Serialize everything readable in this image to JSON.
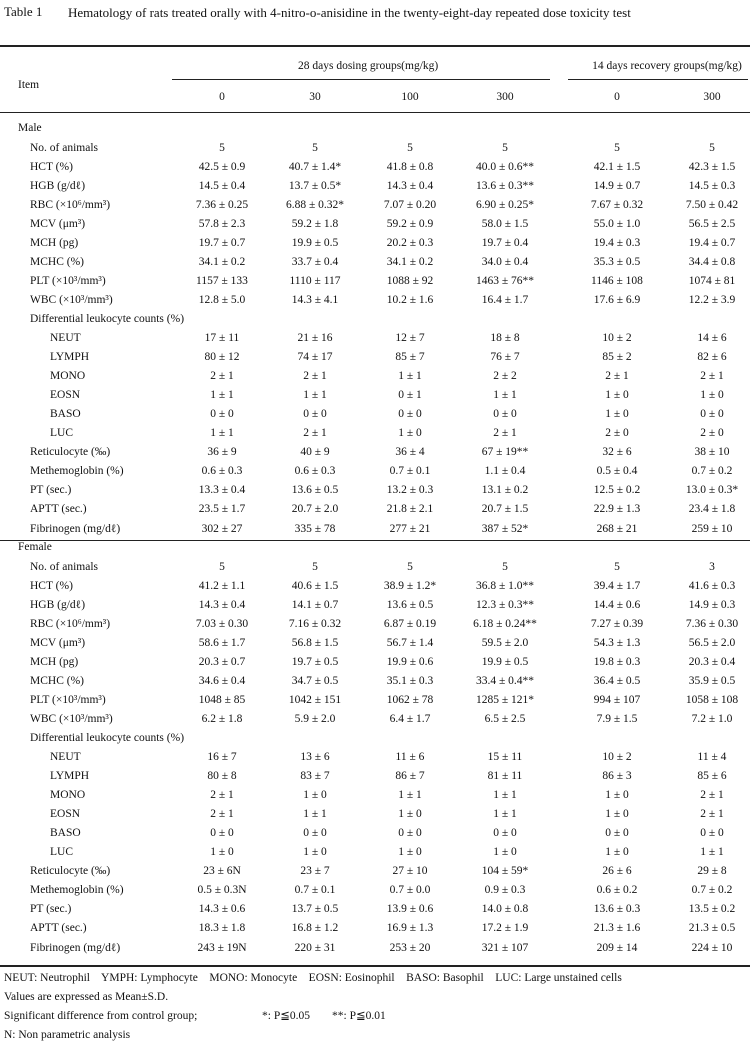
{
  "caption": {
    "number": "Table 1",
    "title": "Hematology of rats treated orally with 4-nitro-o-anisidine in the twenty-eight-day repeated dose toxicity test"
  },
  "header": {
    "item": "Item",
    "groups": [
      "28 days dosing groups(mg/kg)",
      "14 days recovery groups(mg/kg)"
    ],
    "doses": [
      "0",
      "30",
      "100",
      "300",
      "0",
      "300"
    ]
  },
  "sections": [
    {
      "label": "Male",
      "rows": [
        {
          "label": "No. of animals",
          "values": [
            "5",
            "5",
            "5",
            "5",
            "5",
            "5"
          ]
        },
        {
          "label": "HCT (%)",
          "values": [
            "42.5 ± 0.9",
            "40.7 ± 1.4*",
            "41.8 ± 0.8",
            "40.0 ± 0.6**",
            "42.1 ± 1.5",
            "42.3 ± 1.5"
          ]
        },
        {
          "label": "HGB (g/dℓ)",
          "values": [
            "14.5 ± 0.4",
            "13.7 ± 0.5*",
            "14.3 ± 0.4",
            "13.6 ± 0.3**",
            "14.9 ± 0.7",
            "14.5 ± 0.3"
          ]
        },
        {
          "label": "RBC (×10⁶/mm³)",
          "values": [
            "7.36 ± 0.25",
            "6.88 ± 0.32*",
            "7.07 ± 0.20",
            "6.90 ± 0.25*",
            "7.67 ± 0.32",
            "7.50 ± 0.42"
          ]
        },
        {
          "label": "MCV (μm³)",
          "values": [
            "57.8 ± 2.3",
            "59.2 ± 1.8",
            "59.2 ± 0.9",
            "58.0 ± 1.5",
            "55.0 ± 1.0",
            "56.5 ± 2.5"
          ]
        },
        {
          "label": "MCH (pg)",
          "values": [
            "19.7 ± 0.7",
            "19.9 ± 0.5",
            "20.2 ± 0.3",
            "19.7 ± 0.4",
            "19.4 ± 0.3",
            "19.4 ± 0.7"
          ]
        },
        {
          "label": "MCHC (%)",
          "values": [
            "34.1 ± 0.2",
            "33.7 ± 0.4",
            "34.1 ± 0.2",
            "34.0 ± 0.4",
            "35.3 ± 0.5",
            "34.4 ± 0.8"
          ]
        },
        {
          "label": "PLT (×10³/mm³)",
          "values": [
            "1157 ± 133",
            "1110 ± 117",
            "1088 ± 92",
            "1463 ± 76**",
            "1146 ± 108",
            "1074 ± 81"
          ]
        },
        {
          "label": "WBC (×10³/mm³)",
          "values": [
            "12.8 ± 5.0",
            "14.3 ± 4.1",
            "10.2 ± 1.6",
            "16.4 ± 1.7",
            "17.6 ± 6.9",
            "12.2 ± 3.9"
          ]
        },
        {
          "label": "Differential leukocyte counts (%)",
          "subrows": [
            {
              "label": "NEUT",
              "values": [
                "17 ± 11",
                "21 ± 16",
                "12 ± 7",
                "18 ± 8",
                "10 ± 2",
                "14 ± 6"
              ]
            },
            {
              "label": "LYMPH",
              "values": [
                "80 ± 12",
                "74 ± 17",
                "85 ± 7",
                "76 ± 7",
                "85 ± 2",
                "82 ± 6"
              ]
            },
            {
              "label": "MONO",
              "values": [
                "2 ± 1",
                "2 ± 1",
                "1 ± 1",
                "2 ± 2",
                "2 ± 1",
                "2 ± 1"
              ]
            },
            {
              "label": "EOSN",
              "values": [
                "1 ± 1",
                "1 ± 1",
                "0 ± 1",
                "1 ± 1",
                "1 ± 0",
                "1 ± 0"
              ]
            },
            {
              "label": "BASO",
              "values": [
                "0 ± 0",
                "0 ± 0",
                "0 ± 0",
                "0 ± 0",
                "1 ± 0",
                "0 ± 0"
              ]
            },
            {
              "label": "LUC",
              "values": [
                "1 ± 1",
                "2 ± 1",
                "1 ± 0",
                "2 ± 1",
                "2 ± 0",
                "2 ± 0"
              ]
            }
          ]
        },
        {
          "label": "Reticulocyte (‰)",
          "values": [
            "36 ± 9",
            "40 ± 9",
            "36 ± 4",
            "67 ± 19**",
            "32 ± 6",
            "38 ± 10"
          ]
        },
        {
          "label": "Methemoglobin (%)",
          "values": [
            "0.6 ± 0.3",
            "0.6 ± 0.3",
            "0.7 ± 0.1",
            "1.1 ± 0.4",
            "0.5 ± 0.4",
            "0.7 ± 0.2"
          ]
        },
        {
          "label": "PT (sec.)",
          "values": [
            "13.3 ± 0.4",
            "13.6 ± 0.5",
            "13.2 ± 0.3",
            "13.1 ± 0.2",
            "12.5 ± 0.2",
            "13.0 ± 0.3*"
          ]
        },
        {
          "label": "APTT (sec.)",
          "values": [
            "23.5 ± 1.7",
            "20.7 ± 2.0",
            "21.8 ± 2.1",
            "20.7 ± 1.5",
            "22.9 ± 1.3",
            "23.4 ± 1.8"
          ]
        },
        {
          "label": "Fibrinogen (mg/dℓ)",
          "values": [
            "302 ± 27",
            "335 ± 78",
            "277 ± 21",
            "387 ± 52*",
            "268 ± 21",
            "259 ± 10"
          ]
        }
      ]
    },
    {
      "label": "Female",
      "rows": [
        {
          "label": "No. of animals",
          "values": [
            "5",
            "5",
            "5",
            "5",
            "5",
            "3"
          ]
        },
        {
          "label": "HCT (%)",
          "values": [
            "41.2 ± 1.1",
            "40.6 ± 1.5",
            "38.9 ± 1.2*",
            "36.8 ± 1.0**",
            "39.4 ± 1.7",
            "41.6 ± 0.3"
          ]
        },
        {
          "label": "HGB (g/dℓ)",
          "values": [
            "14.3 ± 0.4",
            "14.1 ± 0.7",
            "13.6 ± 0.5",
            "12.3 ± 0.3**",
            "14.4 ± 0.6",
            "14.9 ± 0.3"
          ]
        },
        {
          "label": "RBC (×10⁶/mm³)",
          "values": [
            "7.03 ± 0.30",
            "7.16 ± 0.32",
            "6.87 ± 0.19",
            "6.18 ± 0.24**",
            "7.27 ± 0.39",
            "7.36 ± 0.30"
          ]
        },
        {
          "label": "MCV (μm³)",
          "values": [
            "58.6 ± 1.7",
            "56.8 ± 1.5",
            "56.7 ± 1.4",
            "59.5 ± 2.0",
            "54.3 ± 1.3",
            "56.5 ± 2.0"
          ]
        },
        {
          "label": "MCH (pg)",
          "values": [
            "20.3 ± 0.7",
            "19.7 ± 0.5",
            "19.9 ± 0.6",
            "19.9 ± 0.5",
            "19.8 ± 0.3",
            "20.3 ± 0.4"
          ]
        },
        {
          "label": "MCHC (%)",
          "values": [
            "34.6 ± 0.4",
            "34.7 ± 0.5",
            "35.1 ± 0.3",
            "33.4 ± 0.4**",
            "36.4 ± 0.5",
            "35.9 ± 0.5"
          ]
        },
        {
          "label": "PLT (×10³/mm³)",
          "values": [
            "1048 ± 85",
            "1042 ± 151",
            "1062 ± 78",
            "1285 ± 121*",
            "994 ± 107",
            "1058 ± 108"
          ]
        },
        {
          "label": "WBC (×10³/mm³)",
          "values": [
            "6.2 ± 1.8",
            "5.9 ± 2.0",
            "6.4 ± 1.7",
            "6.5 ± 2.5",
            "7.9 ± 1.5",
            "7.2 ± 1.0"
          ]
        },
        {
          "label": "Differential leukocyte counts (%)",
          "subrows": [
            {
              "label": "NEUT",
              "values": [
                "16 ± 7",
                "13 ± 6",
                "11 ± 6",
                "15 ± 11",
                "10 ± 2",
                "11 ± 4"
              ]
            },
            {
              "label": "LYMPH",
              "values": [
                "80 ± 8",
                "83 ± 7",
                "86 ± 7",
                "81 ± 11",
                "86 ± 3",
                "85 ± 6"
              ]
            },
            {
              "label": "MONO",
              "values": [
                "2 ± 1",
                "1 ± 0",
                "1 ± 1",
                "1 ± 1",
                "1 ± 0",
                "2 ± 1"
              ]
            },
            {
              "label": "EOSN",
              "values": [
                "2 ± 1",
                "1 ± 1",
                "1 ± 0",
                "1 ± 1",
                "1 ± 0",
                "2 ± 1"
              ]
            },
            {
              "label": "BASO",
              "values": [
                "0 ± 0",
                "0 ± 0",
                "0 ± 0",
                "0 ± 0",
                "0 ± 0",
                "0 ± 0"
              ]
            },
            {
              "label": "LUC",
              "values": [
                "1 ± 0",
                "1 ± 0",
                "1 ± 0",
                "1 ± 0",
                "1 ± 0",
                "1 ± 1"
              ]
            }
          ]
        },
        {
          "label": "Reticulocyte (‰)",
          "values": [
            "23 ± 6N",
            "23 ± 7",
            "27 ± 10",
            "104 ± 59*",
            "26 ± 6",
            "29 ± 8"
          ]
        },
        {
          "label": "Methemoglobin (%)",
          "values": [
            "0.5 ± 0.3N",
            "0.7 ± 0.1",
            "0.7 ± 0.0",
            "0.9 ± 0.3",
            "0.6 ± 0.2",
            "0.7 ± 0.2"
          ]
        },
        {
          "label": "PT (sec.)",
          "values": [
            "14.3 ± 0.6",
            "13.7 ± 0.5",
            "13.9 ± 0.6",
            "14.0 ± 0.8",
            "13.6 ± 0.3",
            "13.5 ± 0.2"
          ]
        },
        {
          "label": "APTT (sec.)",
          "values": [
            "18.3 ± 1.8",
            "16.8 ± 1.2",
            "16.9 ± 1.3",
            "17.2 ± 1.9",
            "21.3 ± 1.6",
            "21.3 ± 0.5"
          ]
        },
        {
          "label": "Fibrinogen (mg/dℓ)",
          "values": [
            "243 ± 19N",
            "220 ± 31",
            "253 ± 20",
            "321 ± 107",
            "209 ± 14",
            "224 ± 10"
          ]
        }
      ]
    }
  ],
  "footnotes": {
    "abbreviations": "NEUT: Neutrophil    YMPH: Lymphocyte    MONO: Monocyte    EOSN: Eosinophil    BASO: Basophil    LUC: Large unstained cells",
    "values_note": "Values are expressed as Mean±S.D.",
    "significance": {
      "text": "Significant difference from control group;",
      "p05": "*: P≦0.05",
      "p01": "**: P≦0.01"
    },
    "nonparametric": "N: Non parametric analysis"
  }
}
